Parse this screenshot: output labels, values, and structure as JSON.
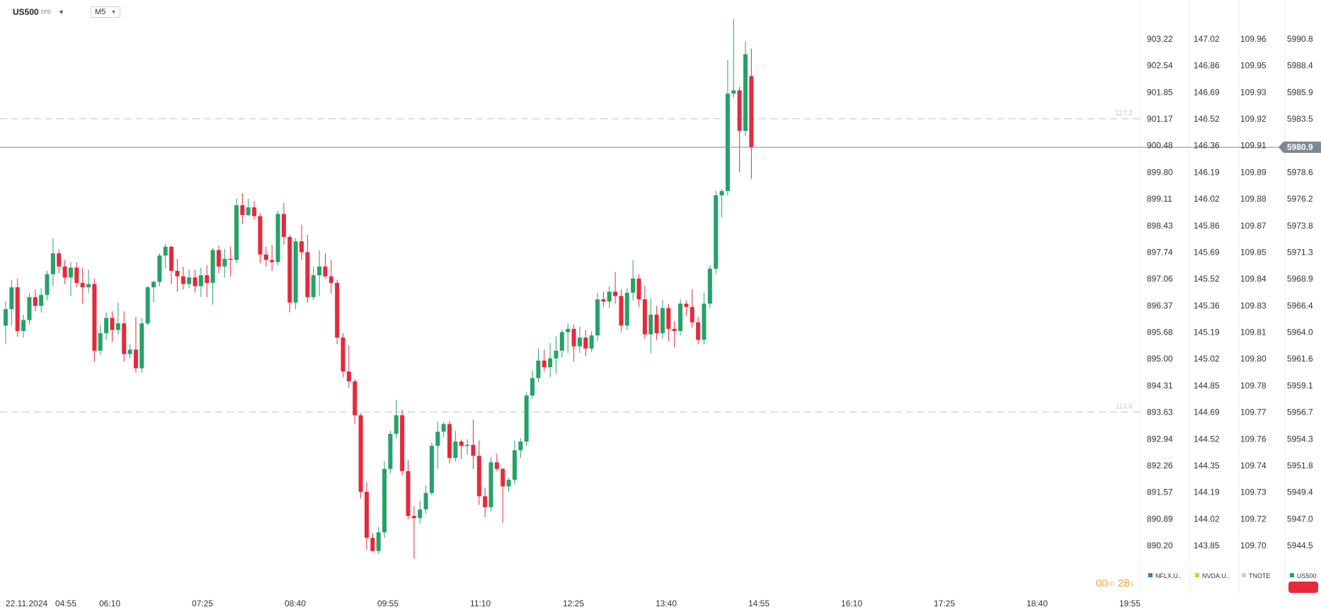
{
  "header": {
    "symbol": "US500",
    "instrument_type": "CFD",
    "timeframe": "M5"
  },
  "countdown": {
    "minutes": "00",
    "seconds": "28",
    "m_unit": "m",
    "s_unit": "s"
  },
  "colors": {
    "up": "#26a269",
    "down": "#e6293b",
    "grid": "#e8e8e8",
    "level_line": "#d5d5d5",
    "price_line": "#8a8a8a",
    "price_tag": "#7d8a93"
  },
  "chart_data": {
    "type": "candlestick",
    "symbol": "US500",
    "timeframe": "M5",
    "x_labels": [
      "22.11.2024",
      "04:55",
      "06:10",
      "07:25",
      "08:40",
      "09:55",
      "11:10",
      "12:25",
      "13:40",
      "14:55",
      "16:10",
      "17:25",
      "18:40",
      "19:55"
    ],
    "y_range": [
      5944.5,
      5990.8
    ],
    "current_price": 5980.9,
    "levels": [
      {
        "label": "127.2",
        "price": 5983.5
      },
      {
        "label": "113.0",
        "price": 5956.7
      }
    ],
    "candles": [
      {
        "o": 5964.6,
        "h": 5966.8,
        "l": 5962.9,
        "c": 5966.1
      },
      {
        "o": 5966.1,
        "h": 5968.8,
        "l": 5964.6,
        "c": 5968.1
      },
      {
        "o": 5968.1,
        "h": 5968.9,
        "l": 5963.6,
        "c": 5964.1
      },
      {
        "o": 5964.1,
        "h": 5965.6,
        "l": 5963.5,
        "c": 5965.1
      },
      {
        "o": 5965.1,
        "h": 5967.6,
        "l": 5964.7,
        "c": 5967.2
      },
      {
        "o": 5967.2,
        "h": 5967.9,
        "l": 5965.9,
        "c": 5966.4
      },
      {
        "o": 5966.4,
        "h": 5968.0,
        "l": 5965.8,
        "c": 5967.4
      },
      {
        "o": 5967.4,
        "h": 5969.6,
        "l": 5966.9,
        "c": 5969.3
      },
      {
        "o": 5969.3,
        "h": 5972.6,
        "l": 5968.2,
        "c": 5971.2
      },
      {
        "o": 5971.2,
        "h": 5971.6,
        "l": 5969.4,
        "c": 5970.0
      },
      {
        "o": 5970.0,
        "h": 5970.6,
        "l": 5968.4,
        "c": 5969.0
      },
      {
        "o": 5969.0,
        "h": 5970.4,
        "l": 5967.3,
        "c": 5969.9
      },
      {
        "o": 5969.9,
        "h": 5970.4,
        "l": 5968.1,
        "c": 5968.5
      },
      {
        "o": 5968.5,
        "h": 5969.9,
        "l": 5966.6,
        "c": 5968.1
      },
      {
        "o": 5968.1,
        "h": 5969.7,
        "l": 5967.6,
        "c": 5968.4
      },
      {
        "o": 5968.4,
        "h": 5968.9,
        "l": 5961.3,
        "c": 5962.3
      },
      {
        "o": 5962.3,
        "h": 5964.7,
        "l": 5961.9,
        "c": 5963.9
      },
      {
        "o": 5963.9,
        "h": 5965.8,
        "l": 5963.3,
        "c": 5965.3
      },
      {
        "o": 5965.3,
        "h": 5965.9,
        "l": 5963.1,
        "c": 5964.2
      },
      {
        "o": 5964.2,
        "h": 5966.7,
        "l": 5963.8,
        "c": 5964.8
      },
      {
        "o": 5964.8,
        "h": 5965.9,
        "l": 5961.3,
        "c": 5962.0
      },
      {
        "o": 5962.0,
        "h": 5962.9,
        "l": 5961.6,
        "c": 5962.4
      },
      {
        "o": 5962.4,
        "h": 5965.4,
        "l": 5960.3,
        "c": 5960.7
      },
      {
        "o": 5960.7,
        "h": 5965.3,
        "l": 5960.3,
        "c": 5964.8
      },
      {
        "o": 5964.8,
        "h": 5968.2,
        "l": 5964.6,
        "c": 5968.1
      },
      {
        "o": 5968.1,
        "h": 5968.7,
        "l": 5966.7,
        "c": 5968.6
      },
      {
        "o": 5968.6,
        "h": 5971.2,
        "l": 5968.2,
        "c": 5971.0
      },
      {
        "o": 5971.0,
        "h": 5972.1,
        "l": 5969.8,
        "c": 5971.8
      },
      {
        "o": 5971.8,
        "h": 5971.9,
        "l": 5968.4,
        "c": 5969.6
      },
      {
        "o": 5969.6,
        "h": 5970.7,
        "l": 5967.7,
        "c": 5969.1
      },
      {
        "o": 5969.1,
        "h": 5970.0,
        "l": 5967.9,
        "c": 5968.4
      },
      {
        "o": 5968.4,
        "h": 5969.7,
        "l": 5968.0,
        "c": 5969.0
      },
      {
        "o": 5969.0,
        "h": 5969.7,
        "l": 5967.6,
        "c": 5968.2
      },
      {
        "o": 5968.2,
        "h": 5969.9,
        "l": 5967.2,
        "c": 5969.2
      },
      {
        "o": 5969.2,
        "h": 5970.1,
        "l": 5967.2,
        "c": 5968.5
      },
      {
        "o": 5968.5,
        "h": 5971.7,
        "l": 5966.5,
        "c": 5971.5
      },
      {
        "o": 5971.5,
        "h": 5971.9,
        "l": 5969.4,
        "c": 5970.0
      },
      {
        "o": 5970.0,
        "h": 5971.6,
        "l": 5969.0,
        "c": 5970.7
      },
      {
        "o": 5970.7,
        "h": 5971.8,
        "l": 5969.1,
        "c": 5970.6
      },
      {
        "o": 5970.6,
        "h": 5976.2,
        "l": 5970.3,
        "c": 5975.6
      },
      {
        "o": 5975.6,
        "h": 5976.7,
        "l": 5973.9,
        "c": 5974.7
      },
      {
        "o": 5974.7,
        "h": 5976.2,
        "l": 5974.6,
        "c": 5975.4
      },
      {
        "o": 5975.4,
        "h": 5976.0,
        "l": 5974.3,
        "c": 5974.6
      },
      {
        "o": 5974.6,
        "h": 5974.9,
        "l": 5970.3,
        "c": 5971.1
      },
      {
        "o": 5971.1,
        "h": 5971.8,
        "l": 5970.0,
        "c": 5970.6
      },
      {
        "o": 5970.6,
        "h": 5972.0,
        "l": 5969.6,
        "c": 5970.4
      },
      {
        "o": 5970.4,
        "h": 5975.1,
        "l": 5970.1,
        "c": 5974.8
      },
      {
        "o": 5974.8,
        "h": 5975.8,
        "l": 5972.0,
        "c": 5972.7
      },
      {
        "o": 5972.7,
        "h": 5972.9,
        "l": 5965.8,
        "c": 5966.7
      },
      {
        "o": 5966.7,
        "h": 5972.6,
        "l": 5966.1,
        "c": 5972.3
      },
      {
        "o": 5972.3,
        "h": 5973.8,
        "l": 5970.6,
        "c": 5971.3
      },
      {
        "o": 5971.3,
        "h": 5972.9,
        "l": 5966.7,
        "c": 5967.2
      },
      {
        "o": 5967.2,
        "h": 5970.0,
        "l": 5966.9,
        "c": 5969.2
      },
      {
        "o": 5969.2,
        "h": 5971.5,
        "l": 5967.3,
        "c": 5970.0
      },
      {
        "o": 5970.0,
        "h": 5971.2,
        "l": 5968.9,
        "c": 5969.1
      },
      {
        "o": 5969.1,
        "h": 5970.6,
        "l": 5967.5,
        "c": 5968.5
      },
      {
        "o": 5968.5,
        "h": 5968.8,
        "l": 5962.9,
        "c": 5963.5
      },
      {
        "o": 5963.5,
        "h": 5963.9,
        "l": 5959.9,
        "c": 5960.4
      },
      {
        "o": 5960.4,
        "h": 5962.8,
        "l": 5958.9,
        "c": 5959.5
      },
      {
        "o": 5959.5,
        "h": 5959.7,
        "l": 5955.6,
        "c": 5956.4
      },
      {
        "o": 5956.4,
        "h": 5956.6,
        "l": 5948.8,
        "c": 5949.4
      },
      {
        "o": 5949.4,
        "h": 5950.3,
        "l": 5944.1,
        "c": 5945.2
      },
      {
        "o": 5945.2,
        "h": 5945.6,
        "l": 5943.9,
        "c": 5944.0
      },
      {
        "o": 5944.0,
        "h": 5946.2,
        "l": 5943.7,
        "c": 5945.7
      },
      {
        "o": 5945.7,
        "h": 5952.2,
        "l": 5945.2,
        "c": 5951.5
      },
      {
        "o": 5951.5,
        "h": 5955.0,
        "l": 5951.1,
        "c": 5954.7
      },
      {
        "o": 5954.7,
        "h": 5957.8,
        "l": 5954.3,
        "c": 5956.4
      },
      {
        "o": 5956.4,
        "h": 5956.9,
        "l": 5950.9,
        "c": 5951.3
      },
      {
        "o": 5951.3,
        "h": 5952.3,
        "l": 5946.9,
        "c": 5947.2
      },
      {
        "o": 5947.2,
        "h": 5948.1,
        "l": 5943.3,
        "c": 5947.0
      },
      {
        "o": 5947.0,
        "h": 5948.6,
        "l": 5946.5,
        "c": 5947.8
      },
      {
        "o": 5947.8,
        "h": 5950.0,
        "l": 5947.4,
        "c": 5949.3
      },
      {
        "o": 5949.3,
        "h": 5953.9,
        "l": 5949.1,
        "c": 5953.6
      },
      {
        "o": 5953.6,
        "h": 5955.8,
        "l": 5951.5,
        "c": 5954.9
      },
      {
        "o": 5954.9,
        "h": 5955.8,
        "l": 5954.4,
        "c": 5955.6
      },
      {
        "o": 5955.6,
        "h": 5955.9,
        "l": 5952.0,
        "c": 5952.5
      },
      {
        "o": 5952.5,
        "h": 5955.0,
        "l": 5952.2,
        "c": 5954.0
      },
      {
        "o": 5954.0,
        "h": 5954.2,
        "l": 5952.4,
        "c": 5953.6
      },
      {
        "o": 5953.6,
        "h": 5954.2,
        "l": 5952.8,
        "c": 5953.7
      },
      {
        "o": 5953.7,
        "h": 5956.0,
        "l": 5951.5,
        "c": 5952.7
      },
      {
        "o": 5952.7,
        "h": 5954.1,
        "l": 5948.2,
        "c": 5949.0
      },
      {
        "o": 5949.0,
        "h": 5949.8,
        "l": 5947.1,
        "c": 5948.0
      },
      {
        "o": 5948.0,
        "h": 5952.6,
        "l": 5947.6,
        "c": 5952.1
      },
      {
        "o": 5952.1,
        "h": 5952.9,
        "l": 5951.3,
        "c": 5951.5
      },
      {
        "o": 5951.5,
        "h": 5951.6,
        "l": 5946.6,
        "c": 5949.9
      },
      {
        "o": 5949.9,
        "h": 5950.7,
        "l": 5949.4,
        "c": 5950.5
      },
      {
        "o": 5950.5,
        "h": 5954.1,
        "l": 5950.1,
        "c": 5953.2
      },
      {
        "o": 5953.2,
        "h": 5954.3,
        "l": 5952.5,
        "c": 5954.0
      },
      {
        "o": 5954.0,
        "h": 5958.5,
        "l": 5953.6,
        "c": 5958.2
      },
      {
        "o": 5958.2,
        "h": 5960.5,
        "l": 5957.9,
        "c": 5959.8
      },
      {
        "o": 5959.8,
        "h": 5962.5,
        "l": 5959.4,
        "c": 5961.4
      },
      {
        "o": 5961.4,
        "h": 5962.4,
        "l": 5960.4,
        "c": 5960.8
      },
      {
        "o": 5960.8,
        "h": 5963.0,
        "l": 5959.9,
        "c": 5961.6
      },
      {
        "o": 5961.6,
        "h": 5963.6,
        "l": 5960.2,
        "c": 5962.3
      },
      {
        "o": 5962.3,
        "h": 5964.2,
        "l": 5961.7,
        "c": 5964.0
      },
      {
        "o": 5964.0,
        "h": 5964.8,
        "l": 5962.1,
        "c": 5964.3
      },
      {
        "o": 5964.3,
        "h": 5964.7,
        "l": 5961.3,
        "c": 5962.7
      },
      {
        "o": 5962.7,
        "h": 5964.5,
        "l": 5962.1,
        "c": 5963.5
      },
      {
        "o": 5963.5,
        "h": 5964.2,
        "l": 5961.8,
        "c": 5962.5
      },
      {
        "o": 5962.5,
        "h": 5964.1,
        "l": 5962.2,
        "c": 5963.7
      },
      {
        "o": 5963.7,
        "h": 5967.6,
        "l": 5963.2,
        "c": 5967.0
      },
      {
        "o": 5967.0,
        "h": 5967.7,
        "l": 5966.3,
        "c": 5966.8
      },
      {
        "o": 5966.8,
        "h": 5968.2,
        "l": 5966.2,
        "c": 5967.7
      },
      {
        "o": 5967.7,
        "h": 5969.5,
        "l": 5966.6,
        "c": 5967.3
      },
      {
        "o": 5967.3,
        "h": 5967.9,
        "l": 5964.1,
        "c": 5964.6
      },
      {
        "o": 5964.6,
        "h": 5968.0,
        "l": 5964.2,
        "c": 5967.6
      },
      {
        "o": 5967.6,
        "h": 5970.6,
        "l": 5966.9,
        "c": 5968.9
      },
      {
        "o": 5968.9,
        "h": 5969.3,
        "l": 5966.3,
        "c": 5967.0
      },
      {
        "o": 5967.0,
        "h": 5968.2,
        "l": 5963.4,
        "c": 5963.8
      },
      {
        "o": 5963.8,
        "h": 5967.1,
        "l": 5962.1,
        "c": 5965.6
      },
      {
        "o": 5965.6,
        "h": 5966.4,
        "l": 5963.3,
        "c": 5963.9
      },
      {
        "o": 5963.9,
        "h": 5966.9,
        "l": 5963.4,
        "c": 5966.2
      },
      {
        "o": 5966.2,
        "h": 5966.6,
        "l": 5963.2,
        "c": 5964.3
      },
      {
        "o": 5964.3,
        "h": 5965.0,
        "l": 5962.6,
        "c": 5964.1
      },
      {
        "o": 5964.1,
        "h": 5967.0,
        "l": 5963.7,
        "c": 5966.6
      },
      {
        "o": 5966.6,
        "h": 5966.9,
        "l": 5965.5,
        "c": 5966.3
      },
      {
        "o": 5966.3,
        "h": 5967.9,
        "l": 5964.4,
        "c": 5964.9
      },
      {
        "o": 5964.9,
        "h": 5965.4,
        "l": 5962.9,
        "c": 5963.3
      },
      {
        "o": 5963.3,
        "h": 5967.6,
        "l": 5962.9,
        "c": 5966.6
      },
      {
        "o": 5966.6,
        "h": 5970.1,
        "l": 5966.2,
        "c": 5969.8
      },
      {
        "o": 5969.8,
        "h": 5976.9,
        "l": 5969.3,
        "c": 5976.5
      },
      {
        "o": 5976.5,
        "h": 5977.1,
        "l": 5974.5,
        "c": 5976.9
      },
      {
        "o": 5976.9,
        "h": 5988.9,
        "l": 5976.5,
        "c": 5985.8
      },
      {
        "o": 5985.8,
        "h": 5992.6,
        "l": 5985.4,
        "c": 5986.1
      },
      {
        "o": 5986.1,
        "h": 5986.4,
        "l": 5978.6,
        "c": 5982.4
      },
      {
        "o": 5982.4,
        "h": 5990.6,
        "l": 5981.9,
        "c": 5989.4
      },
      {
        "o": 5987.4,
        "h": 5989.9,
        "l": 5978.0,
        "c": 5980.9
      }
    ],
    "price_axes": [
      {
        "name": "NFLX.US",
        "legend_label": "NFLX.U..",
        "color": "#2d7be5",
        "ticks": [
          "903.22",
          "902.54",
          "901.85",
          "901.17",
          "900.48",
          "899.80",
          "899.11",
          "898.43",
          "897.74",
          "897.06",
          "896.37",
          "895.68",
          "895.00",
          "894.31",
          "893.63",
          "892.94",
          "892.26",
          "891.57",
          "890.89",
          "890.20"
        ]
      },
      {
        "name": "NVDA.US",
        "legend_label": "NVDA.U..",
        "color": "#f1c232",
        "ticks": [
          "147.02",
          "146.86",
          "146.69",
          "146.52",
          "146.36",
          "146.19",
          "146.02",
          "145.86",
          "145.69",
          "145.52",
          "145.36",
          "145.19",
          "145.02",
          "144.85",
          "144.69",
          "144.52",
          "144.35",
          "144.19",
          "144.02",
          "143.85"
        ]
      },
      {
        "name": "TNOTE",
        "legend_label": "TNOTE",
        "color": "#cfcfcf",
        "ticks": [
          "109.96",
          "109.95",
          "109.93",
          "109.92",
          "109.91",
          "109.89",
          "109.88",
          "109.87",
          "109.85",
          "109.84",
          "109.83",
          "109.81",
          "109.80",
          "109.78",
          "109.77",
          "109.76",
          "109.74",
          "109.73",
          "109.72",
          "109.70"
        ]
      },
      {
        "name": "US500",
        "legend_label": "US500",
        "color": "#26a269",
        "ticks": [
          "5990.8",
          "5988.4",
          "5985.9",
          "5983.5",
          "5980.9",
          "5978.6",
          "5976.2",
          "5973.8",
          "5971.3",
          "5968.9",
          "5966.4",
          "5964.0",
          "5961.6",
          "5959.1",
          "5956.7",
          "5954.3",
          "5951.8",
          "5949.4",
          "5947.0",
          "5944.5"
        ]
      }
    ]
  }
}
